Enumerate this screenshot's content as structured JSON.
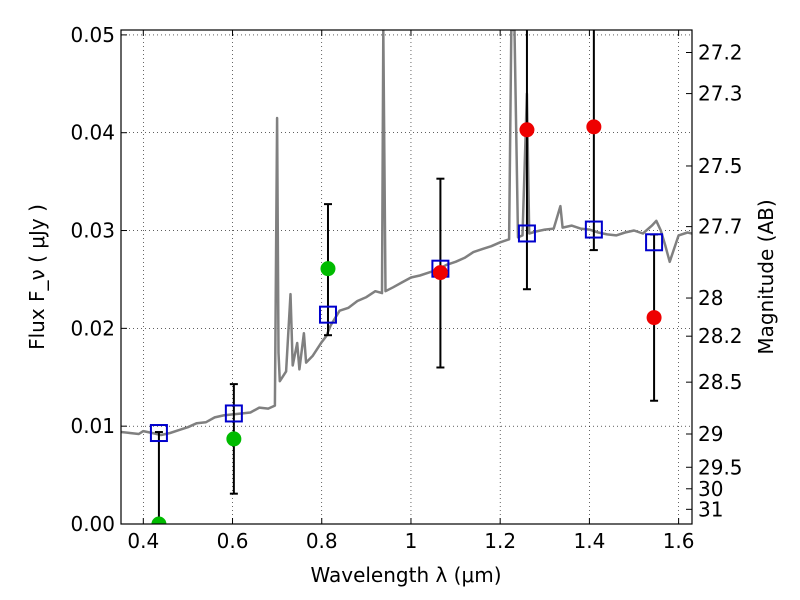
{
  "chart_data": {
    "type": "scatter",
    "xlabel": "Wavelength  λ (μm)",
    "ylabel": "Flux  F_ν ( μJy )",
    "ylabel_right": "Magnitude (AB)",
    "xlim": [
      0.35,
      1.63
    ],
    "ylim": [
      0.0,
      0.0505
    ],
    "x_ticks": [
      0.4,
      0.6,
      0.8,
      1.0,
      1.2,
      1.4,
      1.6
    ],
    "x_tick_labels": [
      "0.4",
      "0.6",
      "0.8",
      "1",
      "1.2",
      "1.4",
      "1.6"
    ],
    "y_ticks": [
      0.0,
      0.01,
      0.02,
      0.03,
      0.04,
      0.05
    ],
    "y_tick_labels": [
      "0.00",
      "0.01",
      "0.02",
      "0.03",
      "0.04",
      "0.05"
    ],
    "right_axis": {
      "ticks": [
        {
          "label": "27.2",
          "flux": 0.0482
        },
        {
          "label": "27.3",
          "flux": 0.044
        },
        {
          "label": "27.5",
          "flux": 0.0366
        },
        {
          "label": "27.7",
          "flux": 0.0304
        },
        {
          "label": "28",
          "flux": 0.0231
        },
        {
          "label": "28.2",
          "flux": 0.0192
        },
        {
          "label": "28.5",
          "flux": 0.0145
        },
        {
          "label": "29",
          "flux": 0.0092
        },
        {
          "label": "29.5",
          "flux": 0.0058
        },
        {
          "label": "30",
          "flux": 0.0036
        },
        {
          "label": "31",
          "flux": 0.0015
        }
      ]
    },
    "grid": true,
    "colors": {
      "template": "#808080",
      "model": "#0000cc",
      "green": "#00bb00",
      "red": "#ee0000",
      "errorbar": "#000000"
    },
    "series": [
      {
        "kind": "line",
        "points": [
          [
            0.35,
            0.0094
          ],
          [
            0.37,
            0.0093
          ],
          [
            0.39,
            0.0092
          ],
          [
            0.4,
            0.0095
          ],
          [
            0.42,
            0.0093
          ],
          [
            0.44,
            0.0091
          ],
          [
            0.46,
            0.0093
          ],
          [
            0.48,
            0.0096
          ],
          [
            0.5,
            0.0099
          ],
          [
            0.52,
            0.0103
          ],
          [
            0.54,
            0.0104
          ],
          [
            0.56,
            0.0109
          ],
          [
            0.58,
            0.0111
          ],
          [
            0.6,
            0.0112
          ],
          [
            0.62,
            0.0113
          ],
          [
            0.64,
            0.0114
          ],
          [
            0.66,
            0.0119
          ],
          [
            0.68,
            0.0118
          ],
          [
            0.695,
            0.0121
          ],
          [
            0.7,
            0.0415
          ],
          [
            0.703,
            0.0175
          ],
          [
            0.706,
            0.0146
          ],
          [
            0.72,
            0.0156
          ],
          [
            0.73,
            0.0235
          ],
          [
            0.735,
            0.0162
          ],
          [
            0.745,
            0.0185
          ],
          [
            0.75,
            0.0158
          ],
          [
            0.76,
            0.0195
          ],
          [
            0.765,
            0.0165
          ],
          [
            0.78,
            0.0172
          ],
          [
            0.8,
            0.0186
          ],
          [
            0.81,
            0.0192
          ],
          [
            0.82,
            0.0203
          ],
          [
            0.84,
            0.0218
          ],
          [
            0.86,
            0.0221
          ],
          [
            0.88,
            0.0228
          ],
          [
            0.9,
            0.0232
          ],
          [
            0.92,
            0.0238
          ],
          [
            0.935,
            0.0236
          ],
          [
            0.938,
            0.0505
          ],
          [
            0.943,
            0.0238
          ],
          [
            0.96,
            0.0242
          ],
          [
            0.98,
            0.0247
          ],
          [
            1.0,
            0.0252
          ],
          [
            1.02,
            0.0254
          ],
          [
            1.04,
            0.0257
          ],
          [
            1.06,
            0.026
          ],
          [
            1.08,
            0.0265
          ],
          [
            1.1,
            0.0268
          ],
          [
            1.12,
            0.0272
          ],
          [
            1.14,
            0.0278
          ],
          [
            1.16,
            0.0281
          ],
          [
            1.18,
            0.0284
          ],
          [
            1.2,
            0.0288
          ],
          [
            1.22,
            0.0291
          ],
          [
            1.225,
            0.0505
          ],
          [
            1.232,
            0.0505
          ],
          [
            1.24,
            0.0293
          ],
          [
            1.25,
            0.0295
          ],
          [
            1.26,
            0.044
          ],
          [
            1.265,
            0.0297
          ],
          [
            1.28,
            0.0299
          ],
          [
            1.3,
            0.0301
          ],
          [
            1.32,
            0.0302
          ],
          [
            1.335,
            0.0325
          ],
          [
            1.34,
            0.0303
          ],
          [
            1.36,
            0.0305
          ],
          [
            1.38,
            0.0302
          ],
          [
            1.4,
            0.0301
          ],
          [
            1.42,
            0.0298
          ],
          [
            1.44,
            0.0296
          ],
          [
            1.46,
            0.0295
          ],
          [
            1.48,
            0.0298
          ],
          [
            1.5,
            0.03
          ],
          [
            1.52,
            0.0297
          ],
          [
            1.54,
            0.0305
          ],
          [
            1.55,
            0.031
          ],
          [
            1.56,
            0.03
          ],
          [
            1.57,
            0.0285
          ],
          [
            1.58,
            0.0268
          ],
          [
            1.6,
            0.0295
          ],
          [
            1.62,
            0.0298
          ],
          [
            1.63,
            0.0297
          ]
        ]
      },
      {
        "kind": "square",
        "points": [
          [
            0.435,
            0.0093
          ],
          [
            0.603,
            0.0113
          ],
          [
            0.814,
            0.0214
          ],
          [
            1.066,
            0.0261
          ],
          [
            1.26,
            0.0297
          ],
          [
            1.41,
            0.0301
          ],
          [
            1.545,
            0.0288
          ]
        ]
      },
      {
        "kind": "circle",
        "points": [
          {
            "x": 0.435,
            "y": 0.0,
            "err_low": 0.0,
            "err_high": 0.0094,
            "color": "green"
          },
          {
            "x": 0.603,
            "y": 0.0087,
            "err_low": 0.0031,
            "err_high": 0.0143,
            "color": "green"
          },
          {
            "x": 0.814,
            "y": 0.0261,
            "err_low": 0.0193,
            "err_high": 0.0327,
            "color": "green"
          },
          {
            "x": 1.066,
            "y": 0.0257,
            "err_low": 0.016,
            "err_high": 0.0353,
            "color": "red"
          },
          {
            "x": 1.26,
            "y": 0.0403,
            "err_low": 0.024,
            "err_high": 0.0505,
            "color": "red"
          },
          {
            "x": 1.41,
            "y": 0.0406,
            "err_low": 0.028,
            "err_high": 0.0505,
            "color": "red"
          },
          {
            "x": 1.545,
            "y": 0.0211,
            "err_low": 0.0126,
            "err_high": 0.0296,
            "color": "red"
          }
        ]
      }
    ]
  }
}
